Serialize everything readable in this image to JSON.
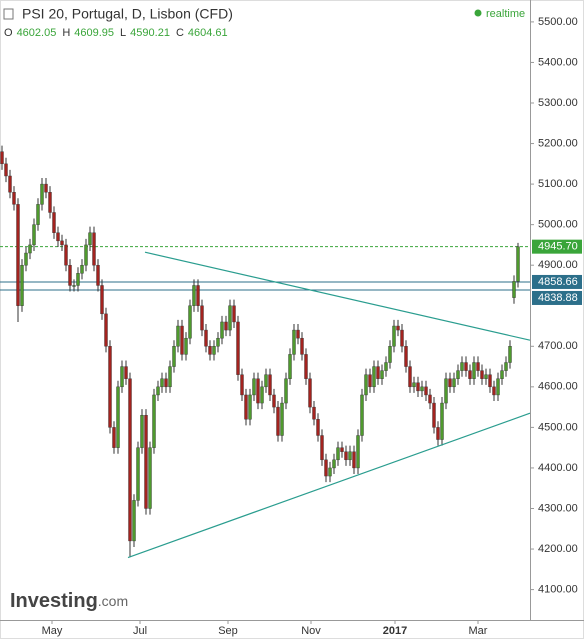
{
  "chart_data": {
    "type": "candlestick",
    "title": "PSI 20, Portugal, D, Lisbon (CFD)",
    "ohlc": {
      "labels": [
        "O",
        "H",
        "L",
        "C"
      ],
      "values": [
        4602.05,
        4609.95,
        4590.21,
        4604.61
      ]
    },
    "status": "realtime",
    "logo": {
      "main": "Investing",
      "suffix": ".com"
    },
    "up_color": "#4f9a2e",
    "down_color": "#a3231f",
    "open": [
      5180,
      5150,
      5120,
      5080,
      5050,
      4800,
      4900,
      4930,
      4950,
      5000,
      5050,
      5100,
      5080,
      5030,
      4980,
      4960,
      4950,
      4900,
      4850,
      4850,
      4880,
      4900,
      4950,
      4980,
      4900,
      4850,
      4780,
      4700,
      4500,
      4450,
      4600,
      4650,
      4620,
      4220,
      4320,
      4450,
      4530,
      4300,
      4450,
      4580,
      4600,
      4620,
      4600,
      4650,
      4700,
      4750,
      4680,
      4720,
      4800,
      4850,
      4800,
      4740,
      4700,
      4680,
      4700,
      4720,
      4760,
      4740,
      4800,
      4760,
      4630,
      4580,
      4520,
      4580,
      4620,
      4560,
      4600,
      4630,
      4580,
      4550,
      4480,
      4560,
      4620,
      4680,
      4740,
      4720,
      4680,
      4620,
      4550,
      4520,
      4480,
      4420,
      4380,
      4400,
      4420,
      4450,
      4440,
      4420,
      4440,
      4400,
      4480,
      4580,
      4630,
      4600,
      4650,
      4620,
      4640,
      4660,
      4700,
      4750,
      4740,
      4700,
      4650,
      4600,
      4610,
      4590,
      4600,
      4580,
      4560,
      4500,
      4470,
      4560,
      4620,
      4600,
      4620,
      4640,
      4660,
      4640,
      4620,
      4660,
      4640,
      4620,
      4630,
      4600,
      4580,
      4620,
      4640,
      4660,
      4820,
      4860
    ],
    "high": [
      5195,
      5165,
      5135,
      5095,
      5065,
      4915,
      4945,
      4965,
      5015,
      5065,
      5115,
      5115,
      5095,
      5045,
      4995,
      4975,
      4965,
      4915,
      4865,
      4895,
      4915,
      4965,
      4995,
      4995,
      4915,
      4865,
      4795,
      4715,
      4515,
      4615,
      4665,
      4665,
      4635,
      4335,
      4465,
      4545,
      4545,
      4465,
      4595,
      4615,
      4635,
      4635,
      4665,
      4715,
      4765,
      4765,
      4735,
      4815,
      4865,
      4865,
      4815,
      4755,
      4715,
      4715,
      4735,
      4775,
      4775,
      4815,
      4815,
      4775,
      4645,
      4595,
      4595,
      4635,
      4635,
      4615,
      4645,
      4645,
      4595,
      4565,
      4575,
      4635,
      4695,
      4755,
      4755,
      4735,
      4695,
      4635,
      4565,
      4535,
      4495,
      4435,
      4415,
      4435,
      4465,
      4465,
      4455,
      4455,
      4455,
      4495,
      4595,
      4645,
      4645,
      4665,
      4665,
      4655,
      4675,
      4715,
      4765,
      4765,
      4755,
      4715,
      4665,
      4625,
      4625,
      4615,
      4615,
      4595,
      4575,
      4515,
      4575,
      4635,
      4635,
      4635,
      4655,
      4675,
      4675,
      4655,
      4675,
      4675,
      4655,
      4645,
      4645,
      4615,
      4635,
      4655,
      4675,
      4715,
      4875,
      4955
    ],
    "low": [
      5135,
      5105,
      5065,
      5035,
      4760,
      4785,
      4885,
      4915,
      4935,
      4985,
      5035,
      5065,
      5015,
      4965,
      4945,
      4935,
      4885,
      4835,
      4835,
      4835,
      4865,
      4885,
      4935,
      4885,
      4835,
      4765,
      4685,
      4485,
      4435,
      4435,
      4585,
      4605,
      4180,
      4205,
      4305,
      4435,
      4285,
      4285,
      4435,
      4565,
      4585,
      4585,
      4585,
      4635,
      4685,
      4665,
      4665,
      4705,
      4785,
      4785,
      4725,
      4685,
      4665,
      4665,
      4685,
      4705,
      4725,
      4725,
      4745,
      4615,
      4565,
      4505,
      4505,
      4565,
      4545,
      4545,
      4585,
      4565,
      4535,
      4465,
      4465,
      4545,
      4605,
      4665,
      4705,
      4665,
      4605,
      4535,
      4505,
      4465,
      4405,
      4365,
      4365,
      4385,
      4405,
      4425,
      4405,
      4405,
      4385,
      4385,
      4465,
      4565,
      4585,
      4585,
      4605,
      4605,
      4625,
      4645,
      4685,
      4725,
      4685,
      4635,
      4585,
      4585,
      4575,
      4575,
      4565,
      4545,
      4485,
      4455,
      4455,
      4545,
      4585,
      4585,
      4605,
      4625,
      4625,
      4605,
      4605,
      4625,
      4605,
      4605,
      4585,
      4565,
      4565,
      4605,
      4625,
      4645,
      4805,
      4845
    ],
    "close": [
      5150,
      5120,
      5080,
      5050,
      4800,
      4900,
      4930,
      4950,
      5000,
      5050,
      5100,
      5080,
      5030,
      4980,
      4960,
      4950,
      4900,
      4850,
      4850,
      4880,
      4900,
      4950,
      4980,
      4900,
      4850,
      4780,
      4700,
      4500,
      4450,
      4600,
      4650,
      4620,
      4220,
      4320,
      4450,
      4530,
      4300,
      4450,
      4580,
      4600,
      4620,
      4600,
      4650,
      4700,
      4750,
      4680,
      4720,
      4800,
      4850,
      4800,
      4740,
      4700,
      4680,
      4700,
      4720,
      4760,
      4740,
      4800,
      4760,
      4630,
      4580,
      4520,
      4580,
      4620,
      4560,
      4600,
      4630,
      4580,
      4550,
      4480,
      4560,
      4620,
      4680,
      4740,
      4720,
      4680,
      4620,
      4550,
      4520,
      4480,
      4420,
      4380,
      4400,
      4420,
      4450,
      4440,
      4420,
      4440,
      4400,
      4480,
      4580,
      4630,
      4600,
      4650,
      4620,
      4640,
      4660,
      4700,
      4750,
      4740,
      4700,
      4650,
      4600,
      4610,
      4590,
      4600,
      4580,
      4560,
      4500,
      4470,
      4560,
      4620,
      4600,
      4620,
      4640,
      4660,
      4640,
      4620,
      4660,
      4640,
      4620,
      4630,
      4600,
      4580,
      4620,
      4640,
      4660,
      4700,
      4860,
      4945.7
    ],
    "xlim": [
      -0.5,
      132
    ],
    "xticks": [
      {
        "value": 12.5,
        "label": "May"
      },
      {
        "value": 34.5,
        "label": "Jul"
      },
      {
        "value": 56.5,
        "label": "Sep"
      },
      {
        "value": 77.25,
        "label": "Nov"
      },
      {
        "value": 98.25,
        "label": "2017"
      },
      {
        "value": 119,
        "label": "Mar"
      }
    ],
    "ylim": [
      4025,
      5554
    ],
    "yticks": [
      {
        "value": 5500,
        "label": "5500.00"
      },
      {
        "value": 5400,
        "label": "5400.00"
      },
      {
        "value": 5300,
        "label": "5300.00"
      },
      {
        "value": 5200,
        "label": "5200.00"
      },
      {
        "value": 5100,
        "label": "5100.00"
      },
      {
        "value": 5000,
        "label": "5000.00"
      },
      {
        "value": 4900,
        "label": "4900.00"
      },
      {
        "value": 4700,
        "label": "4700.00"
      },
      {
        "value": 4600,
        "label": "4600.00"
      },
      {
        "value": 4500,
        "label": "4500.00"
      },
      {
        "value": 4400,
        "label": "4400.00"
      },
      {
        "value": 4300,
        "label": "4300.00"
      },
      {
        "value": 4200,
        "label": "4200.00"
      },
      {
        "value": 4100,
        "label": "4100.00"
      }
    ],
    "trendline_color": "#2a9d8f",
    "trendlines": [
      {
        "x": [
          35.75,
          132
        ],
        "y": [
          4932,
          4715
        ]
      },
      {
        "x": [
          31.5,
          132
        ],
        "y": [
          4179,
          4535
        ]
      }
    ],
    "price_lines": [
      {
        "value": 4945.7,
        "label": "4945.70",
        "color": "#3aa53a",
        "dashed": true
      },
      {
        "value": 4858.66,
        "label": "4858.66",
        "color": "#2c6f8a",
        "dashed": false
      },
      {
        "value": 4838.88,
        "label": "4838.88",
        "color": "#2c6f8a",
        "dashed": false
      }
    ]
  }
}
